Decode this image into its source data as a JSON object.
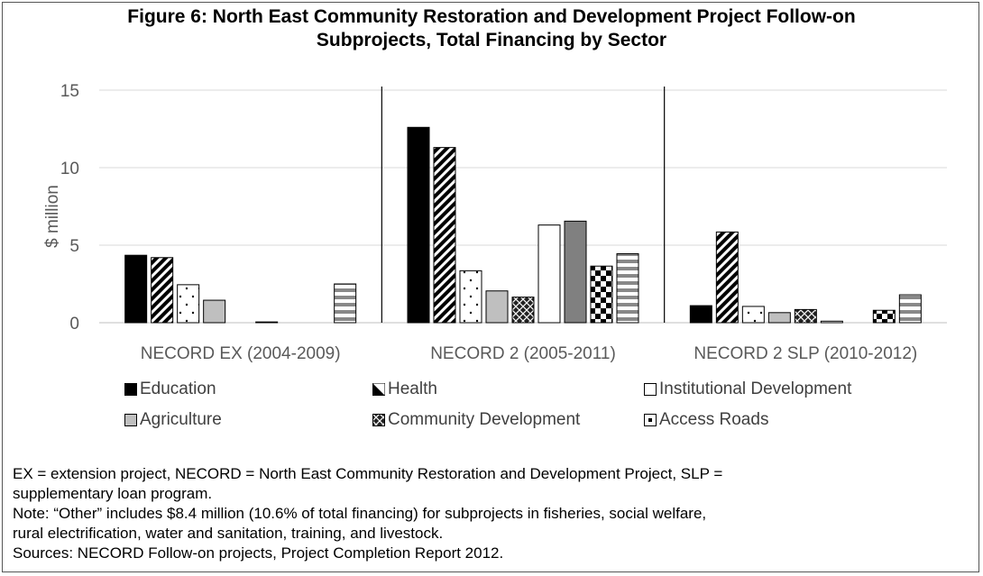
{
  "title_lines": [
    "Figure 6: North East Community Restoration and Development Project Follow-on",
    "Subprojects, Total Financing by Sector"
  ],
  "chart_data": {
    "type": "bar",
    "title": "Figure 6: North East Community Restoration and Development Project Follow-on Subprojects, Total Financing by Sector",
    "ylabel": "$ million",
    "ylim": [
      0,
      15
    ],
    "yticks": [
      0,
      5,
      10,
      15
    ],
    "grid": true,
    "categories": [
      "NECORD EX (2004-2009)",
      "NECORD 2 (2005-2011)",
      "NECORD 2 SLP (2010-2012)"
    ],
    "series": [
      {
        "name": "Education",
        "pattern": "solid-black",
        "values": [
          4.35,
          12.6,
          1.1
        ]
      },
      {
        "name": "Health",
        "pattern": "diagonal-stripes",
        "values": [
          4.2,
          11.3,
          5.85
        ]
      },
      {
        "name": "Institutional Development",
        "pattern": "white-dots",
        "values": [
          2.45,
          3.35,
          1.05
        ]
      },
      {
        "name": "Agriculture",
        "pattern": "solid-light-gray",
        "values": [
          1.45,
          2.05,
          0.65
        ]
      },
      {
        "name": "Community Development",
        "pattern": "checker-x",
        "values": [
          0,
          1.65,
          0.85
        ]
      },
      {
        "name": "Access Roads",
        "pattern": "white-dot-box",
        "values": [
          0.05,
          6.3,
          0.1
        ]
      },
      {
        "name": "",
        "pattern": "solid-dark-gray",
        "values": [
          0,
          6.55,
          0
        ]
      },
      {
        "name": "",
        "pattern": "checkerboard",
        "values": [
          0,
          3.65,
          0.8
        ]
      },
      {
        "name": "",
        "pattern": "horizontal-stripes",
        "values": [
          2.5,
          4.45,
          1.8
        ]
      }
    ],
    "legend": {
      "placement": "bottom",
      "entries": [
        "Education",
        "Health",
        "Institutional Development",
        "Agriculture",
        "Community Development",
        "Access Roads"
      ]
    }
  },
  "notes": [
    "EX = extension project, NECORD = North East Community Restoration and Development Project, SLP =",
    "supplementary loan program.",
    "Note: “Other” includes $8.4 million (10.6% of total financing) for subprojects in fisheries, social welfare,",
    "rural electrification, water and sanitation, training, and livestock.",
    "Sources: NECORD Follow-on projects, Project Completion Report 2012."
  ]
}
